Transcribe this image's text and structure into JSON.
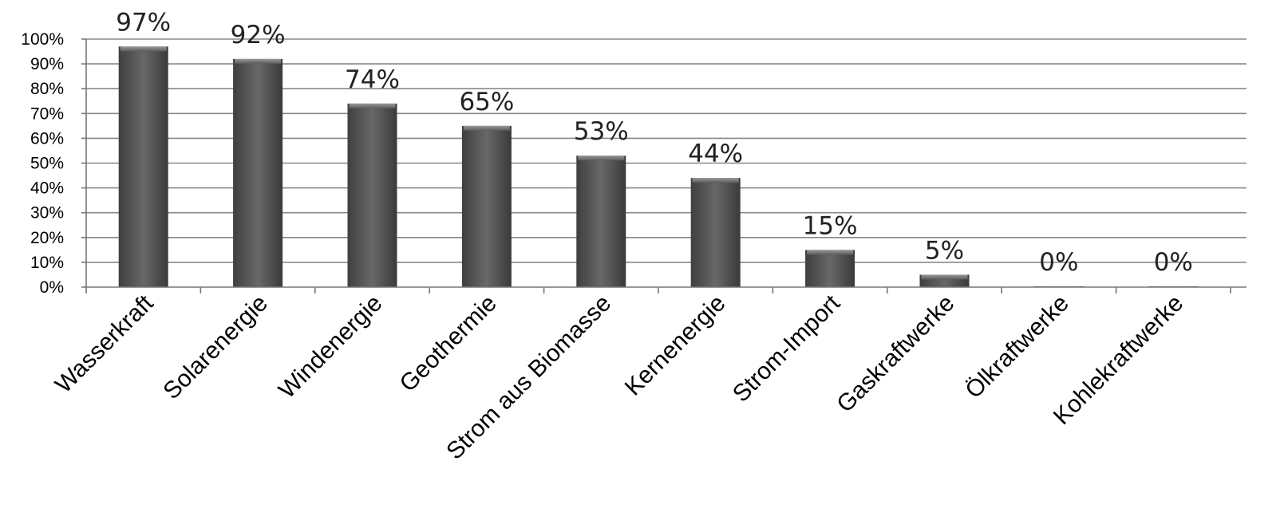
{
  "chart_data": {
    "type": "bar",
    "categories": [
      "Wasserkraft",
      "Solarenergie",
      "Windenergie",
      "Geothermie",
      "Strom aus Biomasse",
      "Kernenergie",
      "Strom-Import",
      "Gaskraftwerke",
      "Ölkraftwerke",
      "Kohlekraftwerke"
    ],
    "values": [
      97,
      92,
      74,
      65,
      53,
      44,
      15,
      5,
      0,
      0
    ],
    "data_labels": [
      "97%",
      "92%",
      "74%",
      "65%",
      "53%",
      "44%",
      "15%",
      "5%",
      "0%",
      "0%"
    ],
    "y_ticks": [
      "0%",
      "10%",
      "20%",
      "30%",
      "40%",
      "50%",
      "60%",
      "70%",
      "80%",
      "90%",
      "100%"
    ],
    "ylim": [
      0,
      100
    ],
    "title": "",
    "xlabel": "",
    "ylabel": "",
    "grid": true,
    "legend": "none",
    "bar_color": "#555555"
  }
}
